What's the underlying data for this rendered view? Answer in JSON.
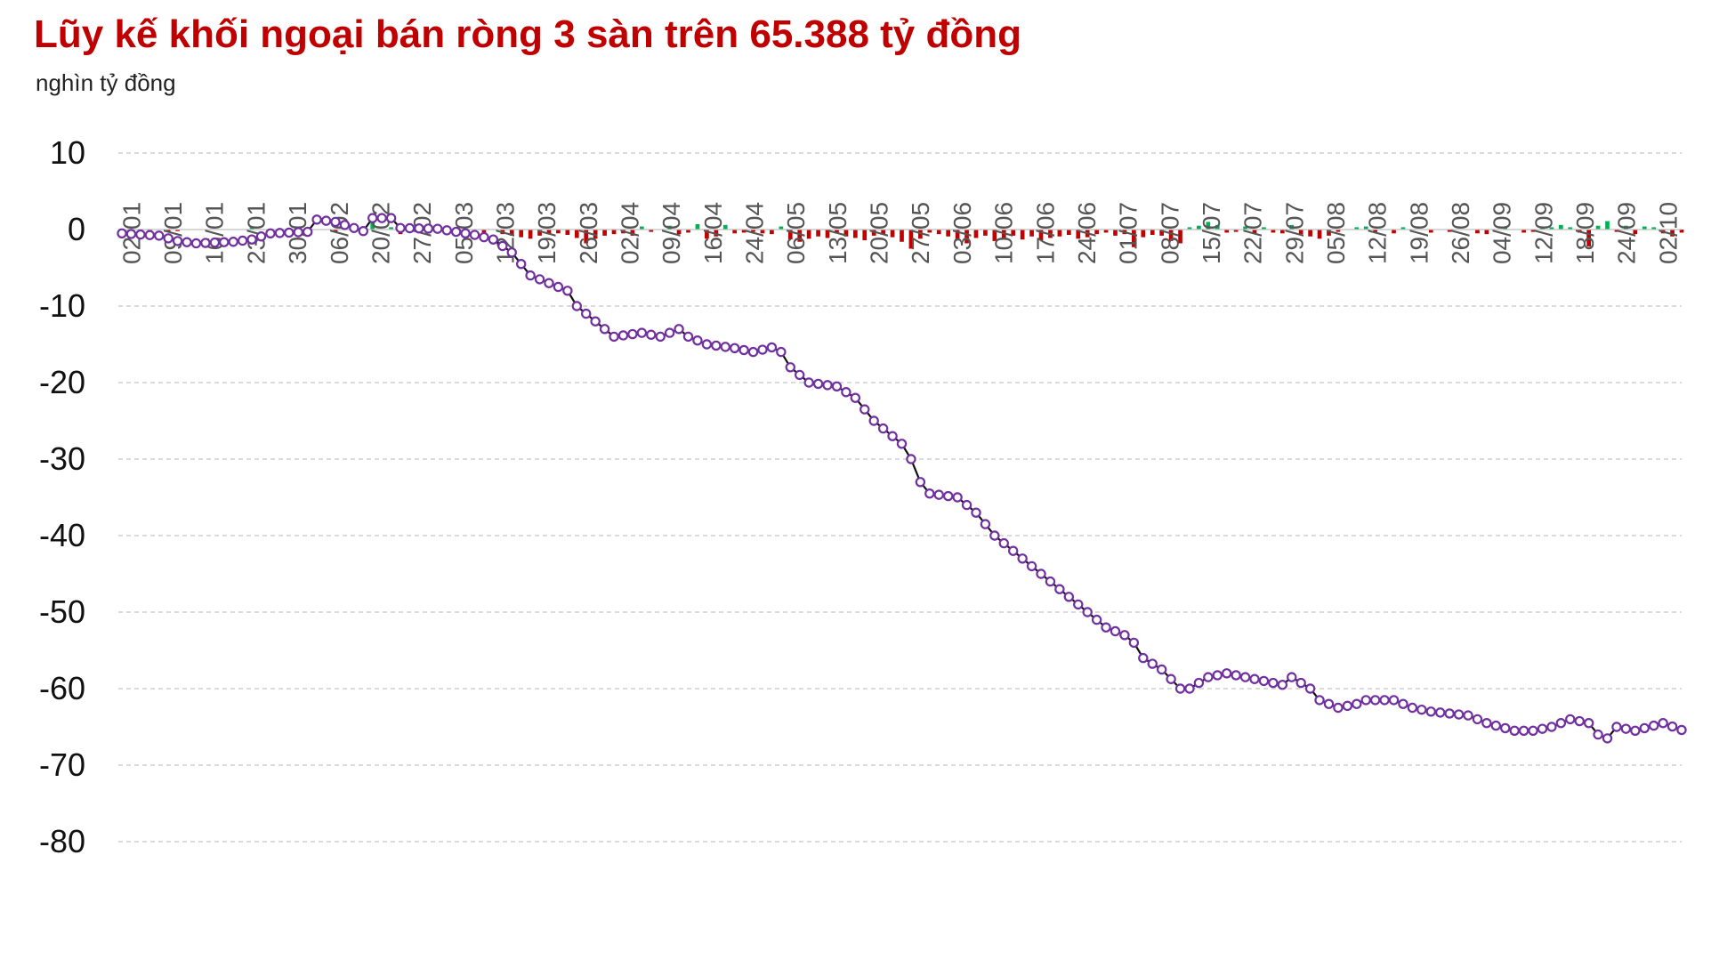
{
  "title": "Lũy kế khối ngoại bán ròng 3 sàn trên 65.388 tỷ đồng",
  "unit_label": "nghìn tỷ đồng",
  "chart_data": {
    "type": "line",
    "ylim": [
      -80,
      10
    ],
    "yticks": [
      "10",
      "0",
      "-10",
      "-20",
      "-30",
      "-40",
      "-50",
      "-60",
      "-70",
      "-80"
    ],
    "grid": true,
    "colors": {
      "line": "#111111",
      "marker": "#7030a0",
      "buy": "#00b050",
      "sell": "#c00000",
      "grid": "#cfcfcf"
    },
    "x_tick_labels": [
      "02/01",
      "09/01",
      "16/01",
      "23/01",
      "30/01",
      "06/02",
      "20/02",
      "27/02",
      "05/03",
      "12/03",
      "19/03",
      "26/03",
      "02/04",
      "09/04",
      "16/04",
      "24/04",
      "06/05",
      "13/05",
      "20/05",
      "27/05",
      "03/06",
      "10/06",
      "17/06",
      "24/06",
      "01/07",
      "08/07",
      "15/07",
      "22/07",
      "29/07",
      "05/08",
      "12/08",
      "19/08",
      "26/08",
      "04/09",
      "12/09",
      "18/09",
      "24/09",
      "02/10"
    ],
    "cumulative_anchors": [
      [
        0,
        -0.5
      ],
      [
        4,
        -0.8
      ],
      [
        6,
        -1.5
      ],
      [
        8,
        -1.8
      ],
      [
        12,
        -1.6
      ],
      [
        14,
        -1.3
      ],
      [
        16,
        -0.5
      ],
      [
        20,
        -0.3
      ],
      [
        21,
        1.3
      ],
      [
        23,
        1.0
      ],
      [
        25,
        0.2
      ],
      [
        26,
        -0.2
      ],
      [
        27,
        1.5
      ],
      [
        29,
        1.5
      ],
      [
        30,
        0.2
      ],
      [
        34,
        0.1
      ],
      [
        38,
        -0.7
      ],
      [
        40,
        -1.3
      ],
      [
        42,
        -3
      ],
      [
        44,
        -6
      ],
      [
        46,
        -7
      ],
      [
        48,
        -8
      ],
      [
        49,
        -10
      ],
      [
        51,
        -12
      ],
      [
        53,
        -14
      ],
      [
        56,
        -13.5
      ],
      [
        58,
        -14
      ],
      [
        60,
        -13
      ],
      [
        61,
        -14
      ],
      [
        63,
        -15
      ],
      [
        66,
        -15.5
      ],
      [
        68,
        -16
      ],
      [
        70,
        -15.4
      ],
      [
        71,
        -16
      ],
      [
        72,
        -18
      ],
      [
        74,
        -20
      ],
      [
        77,
        -20.5
      ],
      [
        79,
        -22
      ],
      [
        81,
        -25
      ],
      [
        83,
        -27
      ],
      [
        84,
        -28
      ],
      [
        85,
        -30
      ],
      [
        86,
        -33
      ],
      [
        87,
        -34.5
      ],
      [
        90,
        -35
      ],
      [
        92,
        -37
      ],
      [
        94,
        -40
      ],
      [
        96,
        -42
      ],
      [
        98,
        -44
      ],
      [
        101,
        -47
      ],
      [
        104,
        -50
      ],
      [
        106,
        -52
      ],
      [
        108,
        -53
      ],
      [
        109,
        -54
      ],
      [
        110,
        -56
      ],
      [
        112,
        -57.5
      ],
      [
        114,
        -60
      ],
      [
        115,
        -60
      ],
      [
        117,
        -58.5
      ],
      [
        119,
        -58
      ],
      [
        121,
        -58.5
      ],
      [
        123,
        -59
      ],
      [
        125,
        -59.5
      ],
      [
        126,
        -58.5
      ],
      [
        128,
        -60
      ],
      [
        129,
        -61.5
      ],
      [
        131,
        -62.5
      ],
      [
        133,
        -62
      ],
      [
        134,
        -61.5
      ],
      [
        137,
        -61.5
      ],
      [
        139,
        -62.5
      ],
      [
        141,
        -63
      ],
      [
        145,
        -63.5
      ],
      [
        147,
        -64.5
      ],
      [
        150,
        -65.5
      ],
      [
        152,
        -65.5
      ],
      [
        154,
        -65
      ],
      [
        156,
        -64
      ],
      [
        158,
        -64.5
      ],
      [
        159,
        -66
      ],
      [
        160,
        -66.5
      ],
      [
        161,
        -65
      ],
      [
        163,
        -65.5
      ],
      [
        166,
        -64.5
      ],
      [
        168,
        -65.4
      ]
    ],
    "daily_flow_bars": [
      [
        2,
        -0.3
      ],
      [
        3,
        -0.2
      ],
      [
        5,
        -0.3
      ],
      [
        6,
        -0.2
      ],
      [
        14,
        0.3
      ],
      [
        19,
        0.3
      ],
      [
        23,
        -0.3
      ],
      [
        26,
        0.4
      ],
      [
        27,
        1.0
      ],
      [
        29,
        0.3
      ],
      [
        30,
        -0.6
      ],
      [
        31,
        -0.4
      ],
      [
        34,
        -0.3
      ],
      [
        37,
        -0.4
      ],
      [
        39,
        -0.5
      ],
      [
        41,
        -0.6
      ],
      [
        42,
        -0.8
      ],
      [
        43,
        -1.0
      ],
      [
        44,
        -1.2
      ],
      [
        45,
        -0.8
      ],
      [
        46,
        -0.6
      ],
      [
        47,
        -0.5
      ],
      [
        48,
        -0.7
      ],
      [
        49,
        -1.1
      ],
      [
        50,
        -1.8
      ],
      [
        51,
        -1.2
      ],
      [
        52,
        -0.8
      ],
      [
        53,
        -0.6
      ],
      [
        54,
        -0.5
      ],
      [
        55,
        -0.8
      ],
      [
        56,
        0.4
      ],
      [
        57,
        -0.3
      ],
      [
        59,
        0.5
      ],
      [
        60,
        -0.6
      ],
      [
        61,
        -0.4
      ],
      [
        62,
        0.7
      ],
      [
        63,
        -1.2
      ],
      [
        64,
        -0.9
      ],
      [
        65,
        0.6
      ],
      [
        66,
        -0.5
      ],
      [
        67,
        -0.4
      ],
      [
        68,
        -0.3
      ],
      [
        69,
        -0.5
      ],
      [
        70,
        -0.6
      ],
      [
        71,
        0.4
      ],
      [
        72,
        -1.3
      ],
      [
        73,
        -1.6
      ],
      [
        74,
        -1.2
      ],
      [
        75,
        -0.9
      ],
      [
        76,
        -1.1
      ],
      [
        77,
        -0.5
      ],
      [
        78,
        -0.9
      ],
      [
        79,
        -1.1
      ],
      [
        80,
        -1.4
      ],
      [
        81,
        -0.8
      ],
      [
        82,
        -0.6
      ],
      [
        83,
        -1.0
      ],
      [
        84,
        -1.6
      ],
      [
        85,
        -2.5
      ],
      [
        86,
        -1.2
      ],
      [
        87,
        -0.4
      ],
      [
        88,
        -0.6
      ],
      [
        89,
        -0.9
      ],
      [
        90,
        -1.3
      ],
      [
        91,
        -1.8
      ],
      [
        92,
        -1.1
      ],
      [
        93,
        -0.8
      ],
      [
        94,
        -1.5
      ],
      [
        95,
        -1.2
      ],
      [
        96,
        -0.8
      ],
      [
        97,
        -1.3
      ],
      [
        98,
        -0.9
      ],
      [
        99,
        -1.4
      ],
      [
        100,
        -1.1
      ],
      [
        101,
        -0.9
      ],
      [
        102,
        -0.7
      ],
      [
        103,
        -1.2
      ],
      [
        104,
        -1.0
      ],
      [
        105,
        -0.6
      ],
      [
        106,
        -0.4
      ],
      [
        107,
        -0.8
      ],
      [
        108,
        -0.6
      ],
      [
        109,
        -2.3
      ],
      [
        110,
        -1.0
      ],
      [
        111,
        -0.7
      ],
      [
        112,
        -0.8
      ],
      [
        113,
        -1.5
      ],
      [
        114,
        -1.8
      ],
      [
        115,
        0.3
      ],
      [
        116,
        0.5
      ],
      [
        117,
        1.0
      ],
      [
        118,
        0.6
      ],
      [
        119,
        -0.4
      ],
      [
        120,
        -0.3
      ],
      [
        121,
        0.4
      ],
      [
        122,
        -0.5
      ],
      [
        123,
        0.3
      ],
      [
        124,
        -0.4
      ],
      [
        125,
        -0.5
      ],
      [
        126,
        0.6
      ],
      [
        127,
        -0.6
      ],
      [
        128,
        -0.9
      ],
      [
        129,
        -1.2
      ],
      [
        130,
        -0.8
      ],
      [
        131,
        -0.3
      ],
      [
        133,
        0.3
      ],
      [
        134,
        0.4
      ],
      [
        135,
        -0.3
      ],
      [
        137,
        -0.5
      ],
      [
        138,
        0.3
      ],
      [
        141,
        -0.4
      ],
      [
        143,
        -0.3
      ],
      [
        146,
        -0.5
      ],
      [
        147,
        -0.6
      ],
      [
        149,
        0.3
      ],
      [
        151,
        -0.4
      ],
      [
        152,
        -0.3
      ],
      [
        153,
        0.4
      ],
      [
        154,
        0.3
      ],
      [
        155,
        0.6
      ],
      [
        156,
        0.3
      ],
      [
        157,
        -0.4
      ],
      [
        158,
        -2.2
      ],
      [
        159,
        0.5
      ],
      [
        160,
        1.1
      ],
      [
        161,
        -0.3
      ],
      [
        162,
        0.5
      ],
      [
        163,
        -0.6
      ],
      [
        164,
        0.4
      ],
      [
        165,
        0.3
      ],
      [
        166,
        -0.5
      ],
      [
        167,
        -0.9
      ],
      [
        168,
        -0.4
      ]
    ]
  }
}
